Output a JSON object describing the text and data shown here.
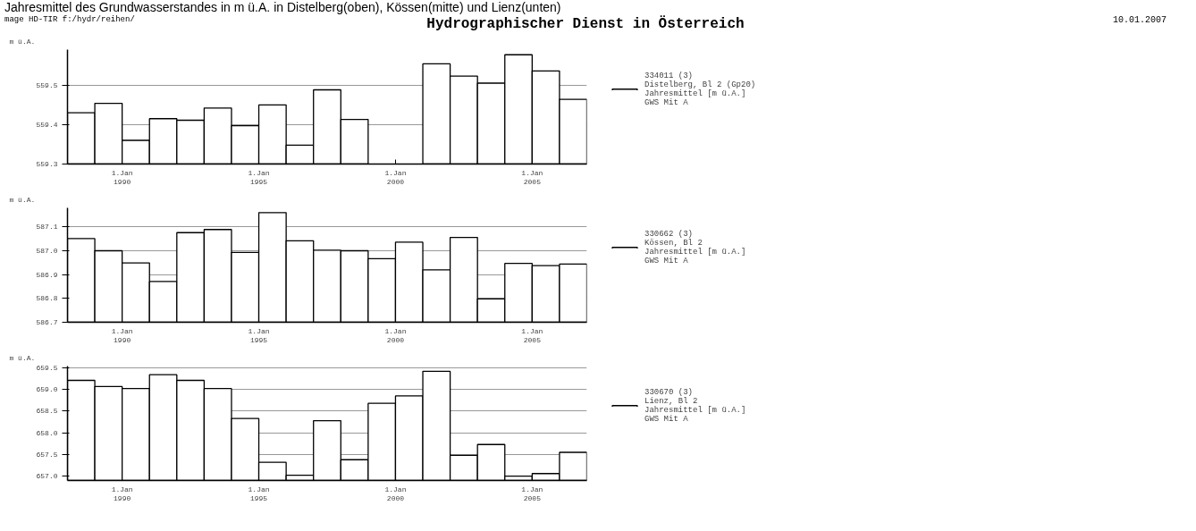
{
  "chart_data": [
    {
      "type": "bar",
      "title": "Jahresmittel des Grundwasserstandes in m ü.A. in Distelberg(oben), Kössen(mitte) und Lienz(unten)",
      "subtitle": "Hydrographischer Dienst in Österreich",
      "annotations": [
        "mage HD-TIR f:/hydr/reihen/",
        "10.01.2007"
      ],
      "ylabel": "m ü.A.",
      "x": [
        "1988-07",
        "1989-07",
        "1990-07",
        "1991-07",
        "1992-07",
        "1993-07",
        "1994-07",
        "1995-07",
        "1996-07",
        "1997-07",
        "1998-07",
        "1999-07",
        "2000-07",
        "2001-07",
        "2002-07",
        "2003-07",
        "2004-07",
        "2005-07",
        "2006-07"
      ],
      "series": [
        {
          "name": "334011 (3)\nDistelberg, Bl 2 (Gp20)\nJahresmittel [m ü.A.]\nGWS Mit A",
          "color": "#000000",
          "values": [
            559.43,
            559.454,
            559.36,
            559.415,
            559.411,
            559.442,
            559.397,
            559.45,
            559.348,
            559.488,
            559.413,
            null,
            null,
            559.554,
            559.523,
            559.505,
            559.577,
            559.536,
            559.464
          ]
        }
      ],
      "xlim": [
        "1988",
        "2007"
      ],
      "xticks": [
        {
          "value": "1990",
          "label": "1.Jan\n1990"
        },
        {
          "value": "1995",
          "label": "1.Jan\n1995"
        },
        {
          "value": "2000",
          "label": "1.Jan\n2000"
        },
        {
          "value": "2005",
          "label": "1.Jan\n2005"
        }
      ],
      "ylim": [
        559.3,
        559.59
      ],
      "yticks": [
        {
          "value": 559.3,
          "label": "559.3"
        },
        {
          "value": 559.4,
          "label": "559.4"
        },
        {
          "value": 559.5,
          "label": "559.5"
        }
      ],
      "grid": "y",
      "legend": "right"
    },
    {
      "type": "bar",
      "ylabel": "m ü.A.",
      "x": [
        "1988-07",
        "1989-07",
        "1990-07",
        "1991-07",
        "1992-07",
        "1993-07",
        "1994-07",
        "1995-07",
        "1996-07",
        "1997-07",
        "1998-07",
        "1999-07",
        "2000-07",
        "2001-07",
        "2002-07",
        "2003-07",
        "2004-07",
        "2005-07",
        "2006-07"
      ],
      "series": [
        {
          "name": "330662 (3)\nKössen, Bl 2\nJahresmittel [m ü.A.]\nGWS Mit A",
          "color": "#000000",
          "values": [
            587.051,
            587.0,
            586.949,
            586.871,
            587.076,
            587.089,
            586.993,
            587.16,
            587.042,
            587.002,
            587.0,
            586.967,
            587.036,
            586.92,
            587.056,
            586.798,
            586.947,
            586.938,
            586.944
          ]
        }
      ],
      "xlim": [
        "1988",
        "2007"
      ],
      "xticks": [
        {
          "value": "1990",
          "label": "1.Jan\n1990"
        },
        {
          "value": "1995",
          "label": "1.Jan\n1995"
        },
        {
          "value": "2000",
          "label": "1.Jan\n2000"
        },
        {
          "value": "2005",
          "label": "1.Jan\n2005"
        }
      ],
      "ylim": [
        586.7,
        587.18
      ],
      "yticks": [
        {
          "value": 586.7,
          "label": "586.7"
        },
        {
          "value": 586.8,
          "label": "586.8"
        },
        {
          "value": 586.9,
          "label": "586.9"
        },
        {
          "value": 587.0,
          "label": "587.0"
        },
        {
          "value": 587.1,
          "label": "587.1"
        }
      ],
      "grid": "y",
      "legend": "right"
    },
    {
      "type": "bar",
      "ylabel": "m ü.A.",
      "x": [
        "1988-07",
        "1989-07",
        "1990-07",
        "1991-07",
        "1992-07",
        "1993-07",
        "1994-07",
        "1995-07",
        "1996-07",
        "1997-07",
        "1998-07",
        "1999-07",
        "2000-07",
        "2001-07",
        "2002-07",
        "2003-07",
        "2004-07",
        "2005-07",
        "2006-07"
      ],
      "series": [
        {
          "name": "330670 (3)\nLienz, Bl 2\nJahresmittel [m ü.A.]\nGWS Mit A",
          "color": "#000000",
          "values": [
            659.21,
            659.07,
            659.02,
            659.34,
            659.21,
            659.02,
            658.33,
            657.32,
            657.02,
            658.28,
            657.38,
            658.68,
            658.85,
            659.42,
            657.48,
            657.73,
            657.0,
            657.06,
            657.55
          ]
        }
      ],
      "xlim": [
        "1988",
        "2007"
      ],
      "xticks": [
        {
          "value": "1990",
          "label": "1.Jan\n1990"
        },
        {
          "value": "1995",
          "label": "1.Jan\n1995"
        },
        {
          "value": "2000",
          "label": "1.Jan\n2000"
        },
        {
          "value": "2005",
          "label": "1.Jan\n2005"
        }
      ],
      "ylim": [
        656.9,
        659.54
      ],
      "yticks": [
        {
          "value": 657.0,
          "label": "657.0"
        },
        {
          "value": 657.5,
          "label": "657.5"
        },
        {
          "value": 658.0,
          "label": "658.0"
        },
        {
          "value": 658.5,
          "label": "658.5"
        },
        {
          "value": 659.0,
          "label": "659.0"
        },
        {
          "value": 659.5,
          "label": "659.5"
        }
      ],
      "grid": "y",
      "legend": "right"
    }
  ]
}
